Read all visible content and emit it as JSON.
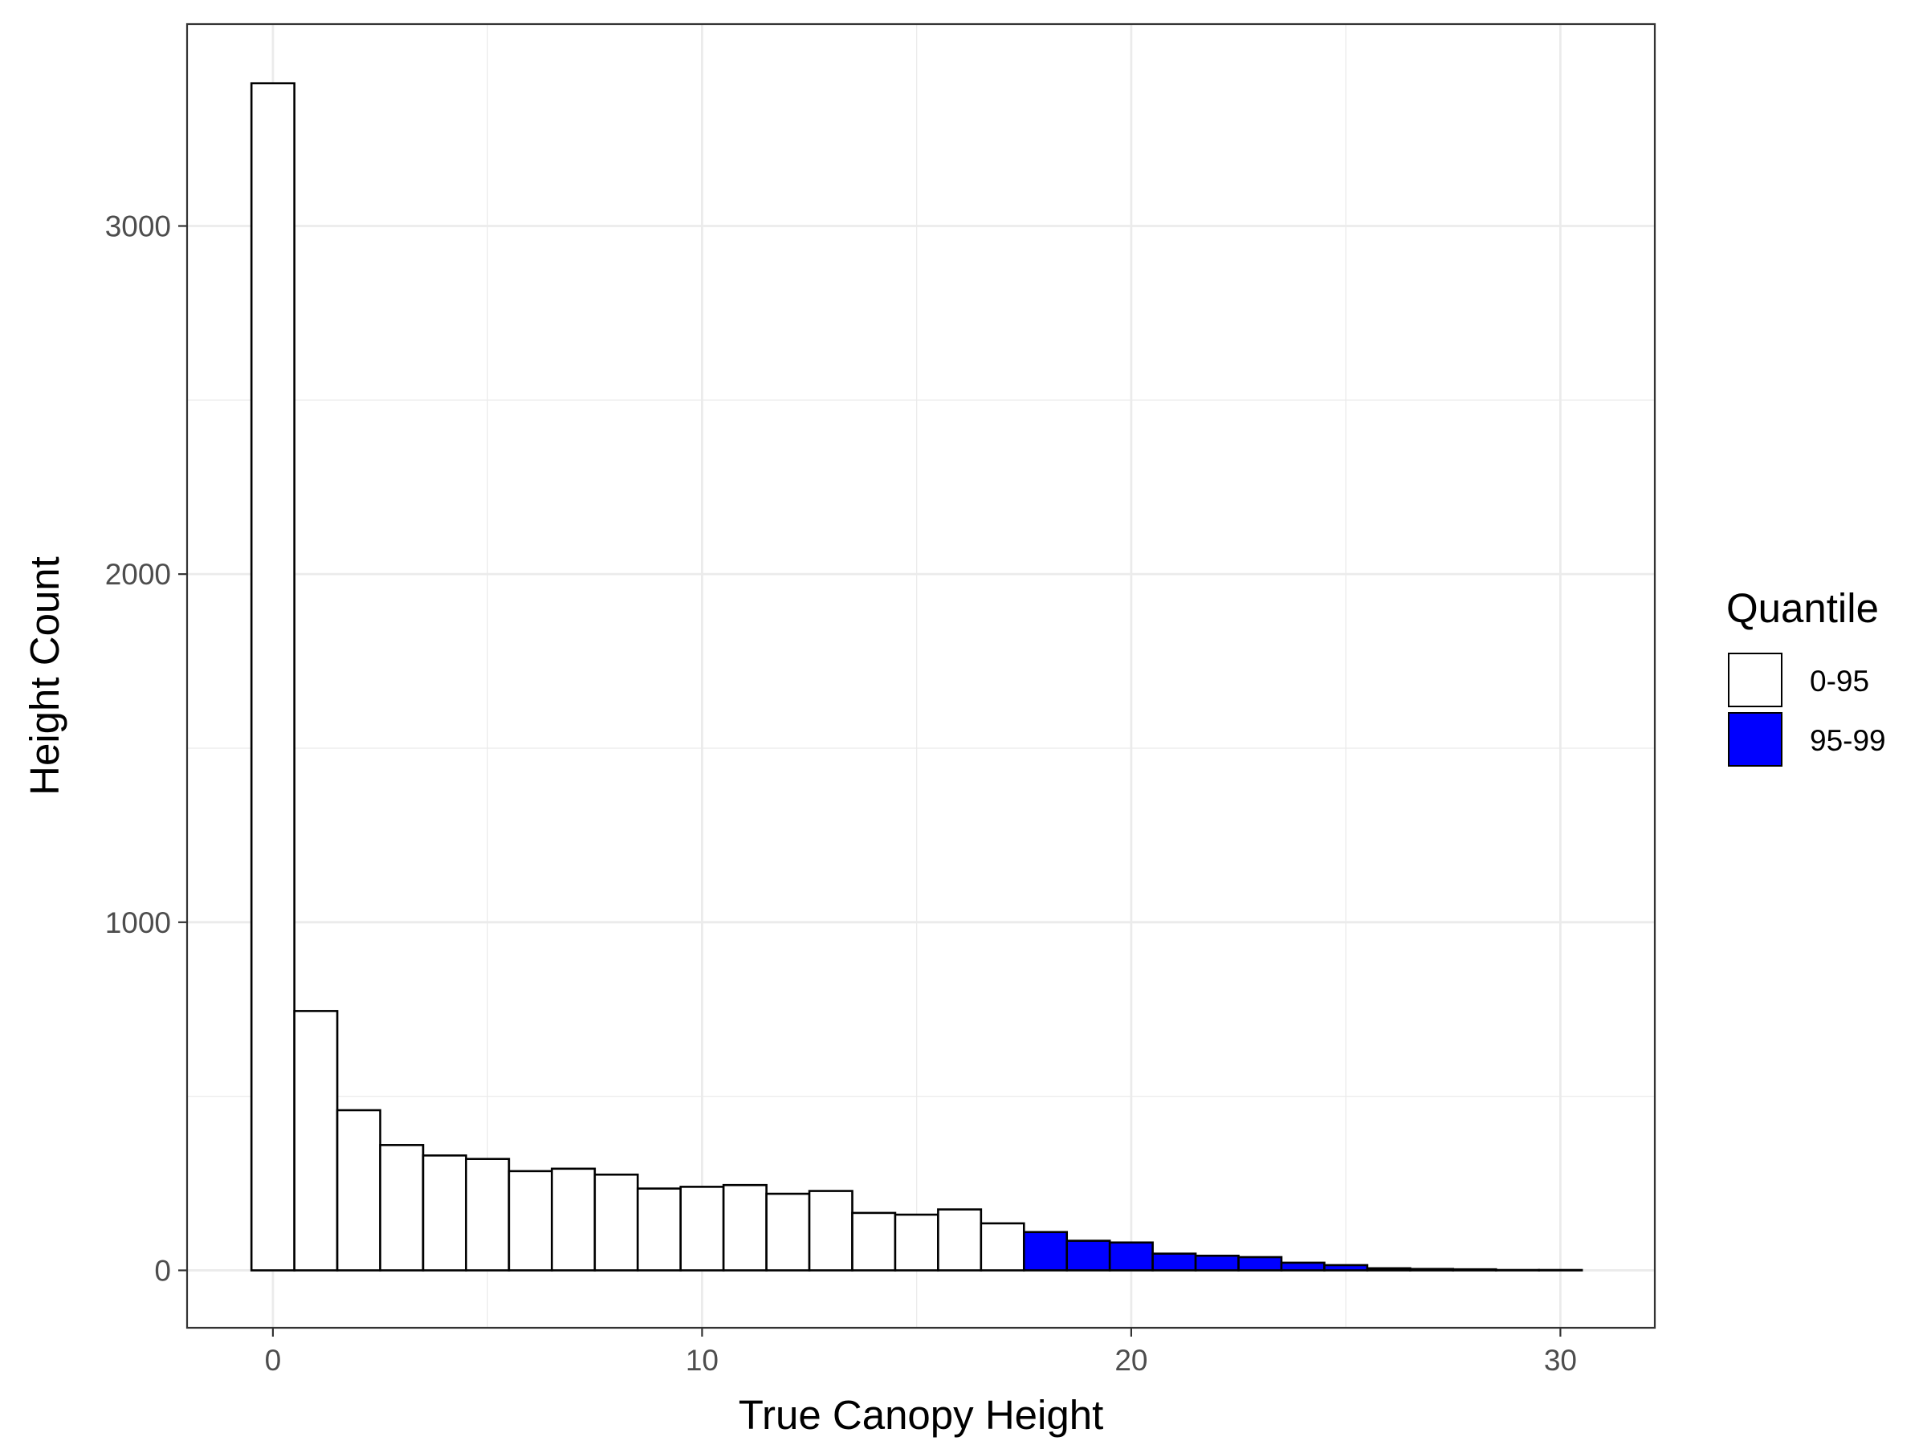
{
  "chart_data": {
    "type": "bar",
    "subtype": "histogram",
    "xlabel": "True Canopy Height",
    "ylabel": "Height Count",
    "xlim": [
      -2,
      32.2
    ],
    "ylim": [
      -165,
      3580
    ],
    "x_ticks": [
      0,
      10,
      20,
      30
    ],
    "x_tick_labels": [
      "0",
      "10",
      "20",
      "30"
    ],
    "y_ticks": [
      0,
      1000,
      2000,
      3000
    ],
    "y_tick_labels": [
      "0",
      "1000",
      "2000",
      "3000"
    ],
    "grid": true,
    "bin_width": 1,
    "legend": {
      "title": "Quantile",
      "position": "right",
      "entries": [
        {
          "label": "0-95",
          "color": "#FFFFFF"
        },
        {
          "label": "95-99",
          "color": "#0000FF"
        }
      ]
    },
    "series": [
      {
        "name": "0-95",
        "color": "#FFFFFF",
        "x": [
          0,
          1,
          2,
          3,
          4,
          5,
          6,
          7,
          8,
          9,
          10,
          11,
          12,
          13,
          14,
          15,
          16,
          17
        ],
        "values": [
          3410,
          745,
          460,
          360,
          330,
          320,
          285,
          292,
          275,
          235,
          240,
          245,
          220,
          228,
          165,
          160,
          175,
          135
        ]
      },
      {
        "name": "95-99",
        "color": "#0000FF",
        "x": [
          18,
          19,
          20,
          21,
          22,
          23,
          24,
          25,
          26,
          27,
          28,
          29,
          30
        ],
        "values": [
          110,
          85,
          80,
          48,
          42,
          38,
          22,
          15,
          6,
          4,
          3,
          1,
          1
        ]
      }
    ]
  }
}
